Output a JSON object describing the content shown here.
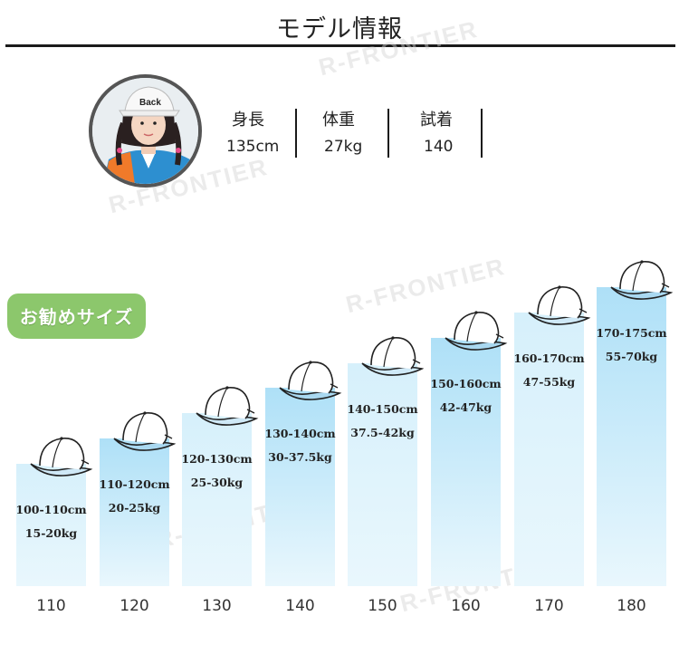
{
  "header": {
    "title": "モデル情報"
  },
  "model": {
    "stats": [
      {
        "label": "身長",
        "value": "135cm"
      },
      {
        "label": "体重",
        "value": "27kg"
      },
      {
        "label": "試着",
        "value": "140"
      }
    ]
  },
  "badge": {
    "label": "お勧めサイズ"
  },
  "watermark": {
    "text": "R-FRONTIER"
  },
  "icons": {
    "cap": "baseball-cap-icon",
    "avatar": "model-photo"
  },
  "colors": {
    "bar_light": "#d6f0fb",
    "bar_dark": "#aee0f7",
    "badge": "#8cc76c",
    "rule": "#1a1a1a"
  },
  "chart_data": {
    "type": "bar",
    "categories": [
      "110",
      "120",
      "130",
      "140",
      "150",
      "160",
      "170",
      "180"
    ],
    "height_ranges": [
      "100-110cm",
      "110-120cm",
      "120-130cm",
      "130-140cm",
      "140-150cm",
      "150-160cm",
      "160-170cm",
      "170-175cm"
    ],
    "weight_ranges": [
      "15-20kg",
      "20-25kg",
      "25-30kg",
      "30-37.5kg",
      "37.5-42kg",
      "42-47kg",
      "47-55kg",
      "55-70kg"
    ],
    "values": [
      110,
      120,
      130,
      140,
      150,
      160,
      170,
      180
    ]
  }
}
